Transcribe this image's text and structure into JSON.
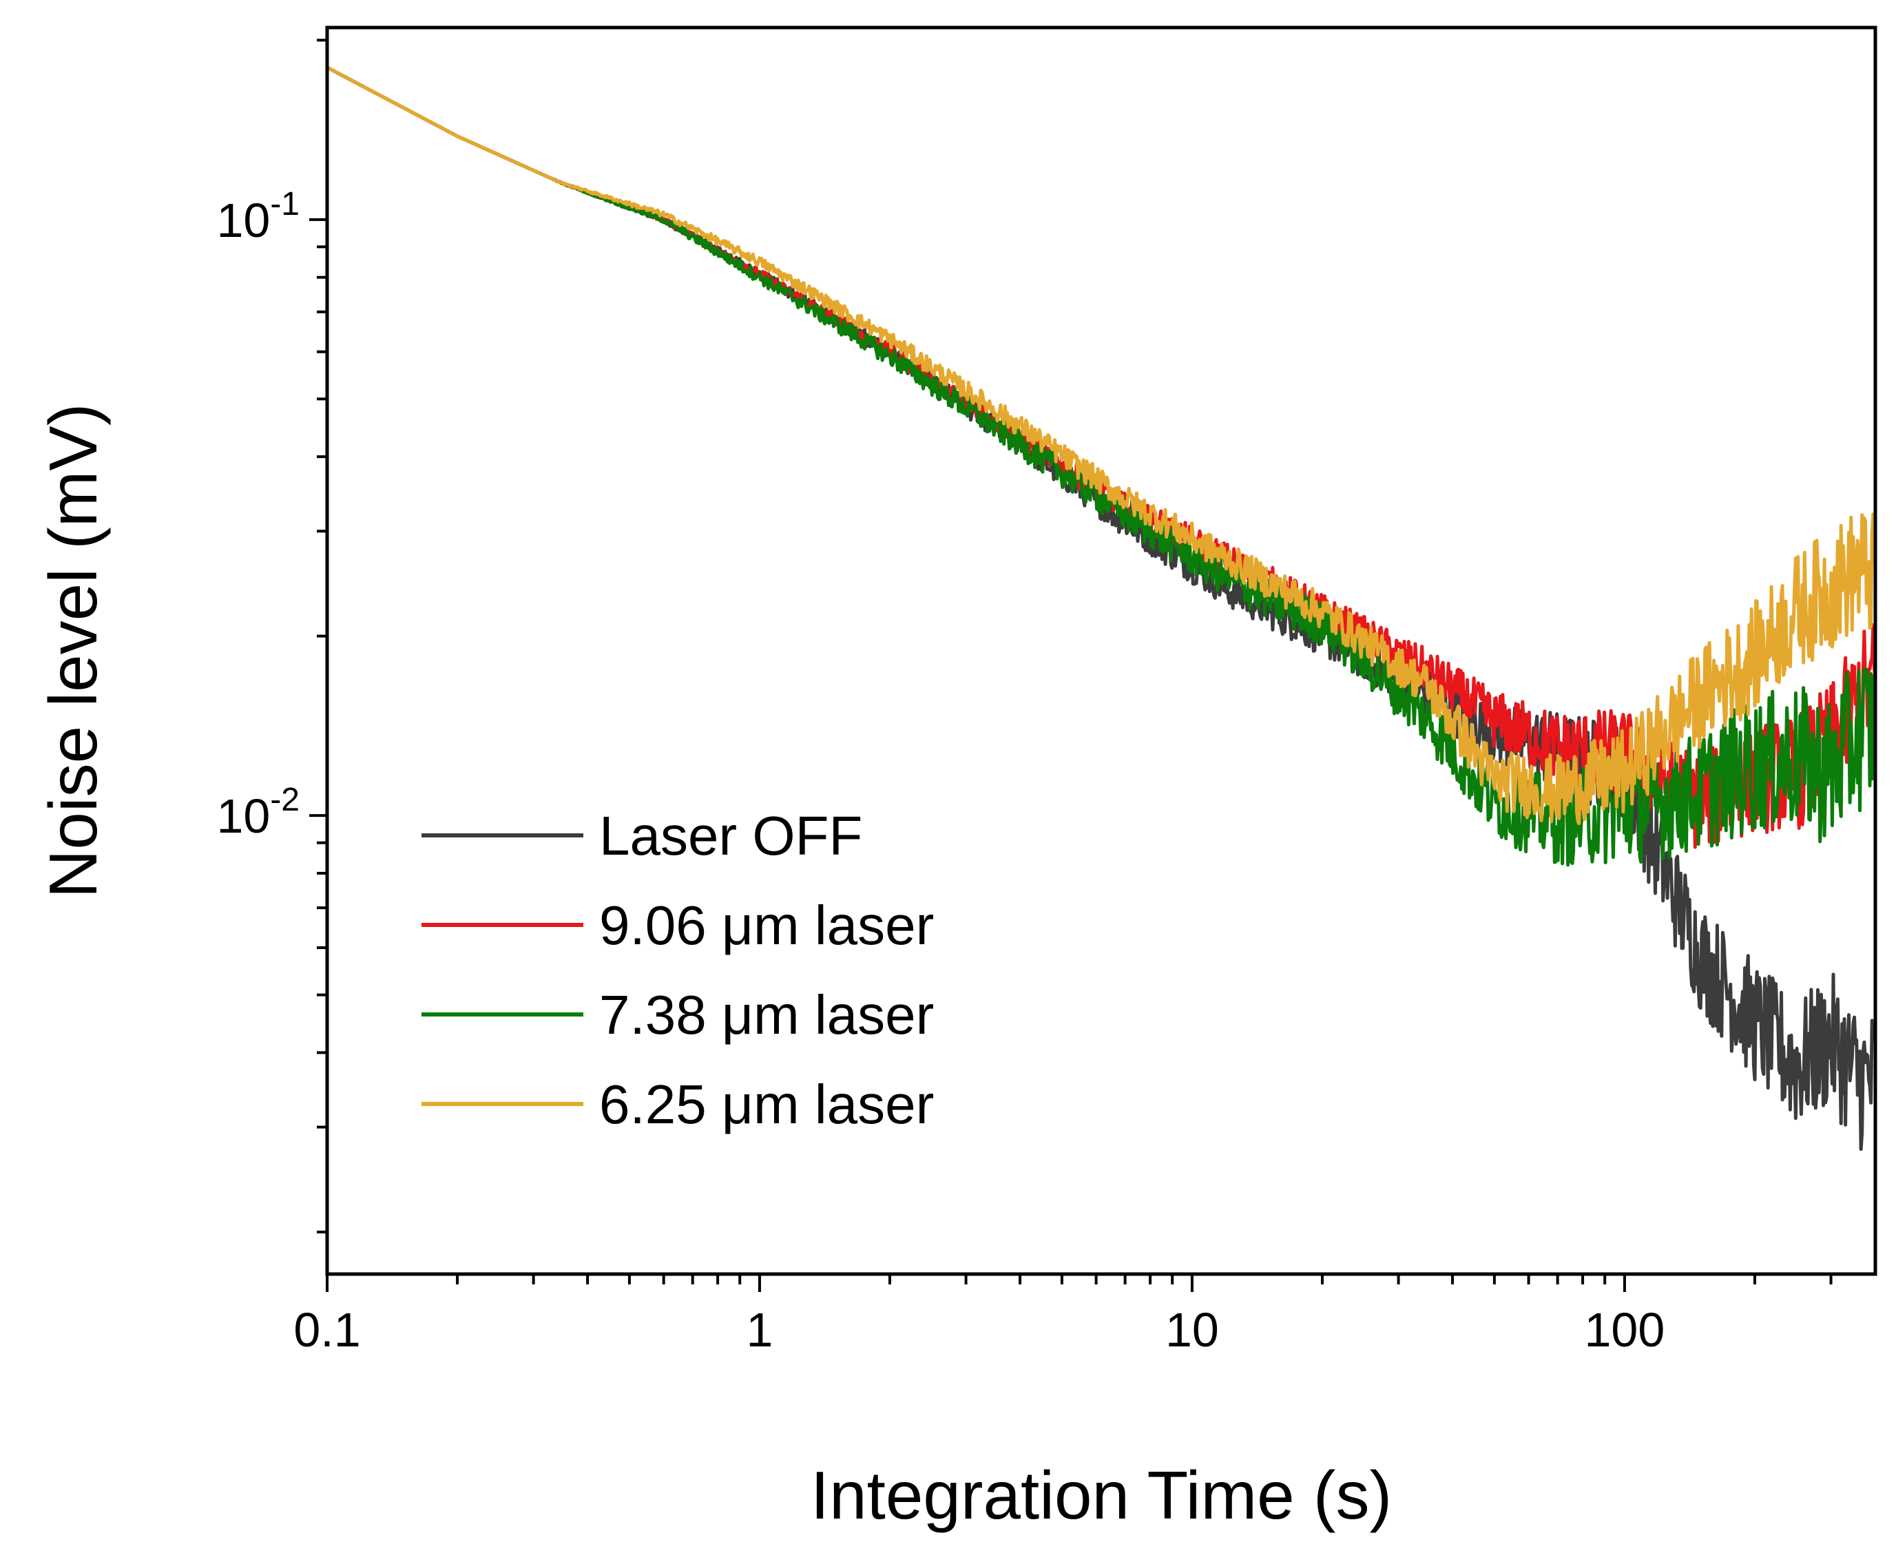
{
  "chart_data": {
    "type": "line",
    "xlabel": "Integration Time (s)",
    "ylabel": "Noise level (mV)",
    "x_scale": "log",
    "y_scale": "log",
    "xlim": [
      0.1,
      380
    ],
    "ylim": [
      0.0017,
      0.21
    ],
    "x_ticks": [
      {
        "value": 0.1,
        "label": "0.1"
      },
      {
        "value": 1,
        "label": "1"
      },
      {
        "value": 10,
        "label": "10"
      },
      {
        "value": 100,
        "label": "100"
      }
    ],
    "y_ticks": [
      {
        "value": 0.1,
        "base": "10",
        "exponent": "-1"
      },
      {
        "value": 0.01,
        "base": "10",
        "exponent": "-2"
      }
    ],
    "grid": false,
    "legend_position": "bottom-left",
    "series": [
      {
        "name": "Laser OFF",
        "color": "#3c3c3c",
        "noise": 0.045,
        "x": [
          0.1,
          0.2,
          0.35,
          0.6,
          1.0,
          2.0,
          4.0,
          7.0,
          12.0,
          20.0,
          35.0,
          50.0,
          70.0,
          100.0,
          120.0,
          150.0,
          200.0,
          250.0,
          300.0,
          350.0,
          380.0
        ],
        "y": [
          0.18,
          0.138,
          0.115,
          0.1,
          0.081,
          0.06,
          0.042,
          0.031,
          0.024,
          0.02,
          0.016,
          0.0138,
          0.0128,
          0.0118,
          0.0085,
          0.0058,
          0.0045,
          0.0038,
          0.0042,
          0.0036,
          0.0036
        ]
      },
      {
        "name": "9.06 μm laser",
        "color": "#e8171b",
        "noise": 0.04,
        "x": [
          0.1,
          0.2,
          0.35,
          0.6,
          1.0,
          2.0,
          4.0,
          7.0,
          12.0,
          20.0,
          35.0,
          50.0,
          70.0,
          100.0,
          120.0,
          150.0,
          200.0,
          250.0,
          300.0,
          350.0,
          380.0
        ],
        "y": [
          0.18,
          0.138,
          0.115,
          0.1,
          0.081,
          0.06,
          0.043,
          0.033,
          0.027,
          0.022,
          0.0175,
          0.0145,
          0.013,
          0.0128,
          0.0115,
          0.0105,
          0.0115,
          0.0118,
          0.0132,
          0.0158,
          0.017
        ]
      },
      {
        "name": "7.38 μm laser",
        "color": "#0a7d0a",
        "noise": 0.05,
        "x": [
          0.1,
          0.2,
          0.35,
          0.6,
          1.0,
          2.0,
          4.0,
          7.0,
          12.0,
          20.0,
          35.0,
          50.0,
          70.0,
          100.0,
          120.0,
          150.0,
          200.0,
          250.0,
          300.0,
          350.0,
          380.0
        ],
        "y": [
          0.18,
          0.138,
          0.115,
          0.1,
          0.08,
          0.059,
          0.042,
          0.032,
          0.025,
          0.021,
          0.0145,
          0.0105,
          0.0098,
          0.0102,
          0.0105,
          0.011,
          0.0122,
          0.0125,
          0.0118,
          0.0138,
          0.0142
        ]
      },
      {
        "name": "6.25 μm laser",
        "color": "#e5a82e",
        "noise": 0.04,
        "x": [
          0.1,
          0.2,
          0.35,
          0.6,
          1.0,
          2.0,
          4.0,
          7.0,
          12.0,
          20.0,
          35.0,
          50.0,
          70.0,
          100.0,
          120.0,
          150.0,
          200.0,
          250.0,
          300.0,
          350.0,
          380.0
        ],
        "y": [
          0.18,
          0.138,
          0.115,
          0.102,
          0.085,
          0.063,
          0.045,
          0.034,
          0.027,
          0.022,
          0.0165,
          0.0115,
          0.011,
          0.0118,
          0.0135,
          0.0158,
          0.0185,
          0.022,
          0.024,
          0.026,
          0.025
        ]
      }
    ]
  }
}
